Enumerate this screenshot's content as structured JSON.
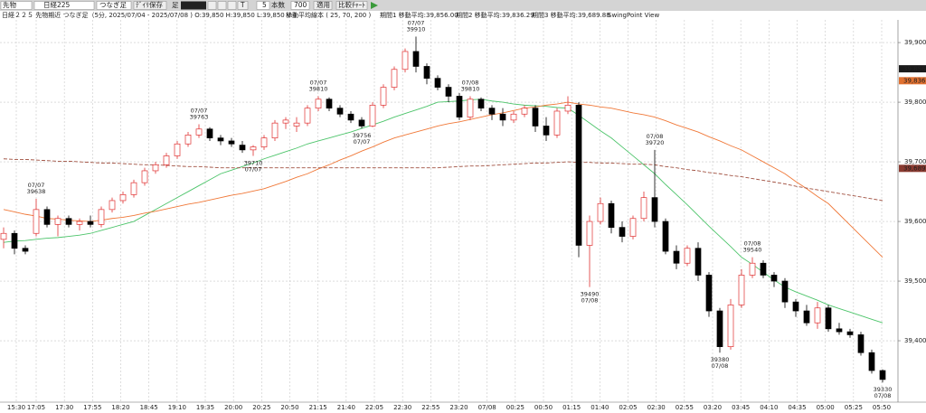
{
  "toolbar": {
    "market": "先物",
    "symbol": "日経225",
    "mode": "つなぎ足",
    "save": "ﾃﾞｲﾘ保存",
    "bar": "足",
    "t": "T",
    "interval": "5",
    "count_label": "本数",
    "count": "700",
    "apply": "適用",
    "compare": "比較ﾁｬｰﾄ"
  },
  "header": {
    "info": "日経２２５ 先物期近 つなぎ足（5分, 2025/07/04 - 2025/07/08 )  O:39,850 H:39,850 L:39,850 V:4",
    "ma_setting": "移動平均線本 ( 25, 70, 200 )",
    "ma_values": [
      "期間1 移動平均:39,856.00",
      "期間2 移動平均:39,836.29",
      "期間3 移動平均:39,689.88"
    ],
    "view": "SwingPoint View"
  },
  "chart_data": {
    "type": "candlestick",
    "up_color": "#e03030",
    "down_color": "#000000",
    "grid": true,
    "ylim": [
      39297,
      39938
    ],
    "yticks": [
      {
        "value": 39400,
        "label": "39,400"
      },
      {
        "value": 39500,
        "label": "39,500"
      },
      {
        "value": 39600,
        "label": "39,600"
      },
      {
        "value": 39700,
        "label": "39,700"
      },
      {
        "value": 39800,
        "label": "39,800"
      },
      {
        "value": 39900,
        "label": "39,900"
      }
    ],
    "time_labels": [
      "15:30",
      "17:05",
      "17:30",
      "17:55",
      "18:20",
      "18:45",
      "19:10",
      "19:35",
      "20:00",
      "20:25",
      "20:50",
      "21:15",
      "21:40",
      "22:05",
      "22:30",
      "22:55",
      "23:20",
      "07/08",
      "00:25",
      "00:50",
      "01:15",
      "01:40",
      "02:05",
      "02:30",
      "02:55",
      "03:20",
      "03:45",
      "04:10",
      "04:35",
      "05:00",
      "05:25",
      "05:50"
    ],
    "candles": [
      [
        39570,
        39590,
        39555,
        39580
      ],
      [
        39580,
        39585,
        39545,
        39555
      ],
      [
        39555,
        39560,
        39545,
        39550
      ],
      [
        39580,
        39638,
        39575,
        39620
      ],
      [
        39620,
        39625,
        39590,
        39595
      ],
      [
        39595,
        39610,
        39575,
        39605
      ],
      [
        39605,
        39610,
        39590,
        39595
      ],
      [
        39595,
        39605,
        39585,
        39600
      ],
      [
        39600,
        39610,
        39590,
        39595
      ],
      [
        39595,
        39625,
        39590,
        39620
      ],
      [
        39620,
        39640,
        39615,
        39635
      ],
      [
        39635,
        39650,
        39630,
        39645
      ],
      [
        39645,
        39670,
        39640,
        39665
      ],
      [
        39665,
        39690,
        39660,
        39685
      ],
      [
        39685,
        39700,
        39680,
        39695
      ],
      [
        39695,
        39715,
        39690,
        39710
      ],
      [
        39710,
        39735,
        39705,
        39730
      ],
      [
        39730,
        39750,
        39725,
        39745
      ],
      [
        39745,
        39763,
        39740,
        39755
      ],
      [
        39755,
        39758,
        39735,
        39740
      ],
      [
        39740,
        39745,
        39728,
        39735
      ],
      [
        39735,
        39740,
        39725,
        39730
      ],
      [
        39728,
        39735,
        39715,
        39720
      ],
      [
        39720,
        39728,
        39710,
        39725
      ],
      [
        39725,
        39745,
        39720,
        39740
      ],
      [
        39740,
        39770,
        39735,
        39765
      ],
      [
        39765,
        39775,
        39755,
        39770
      ],
      [
        39760,
        39775,
        39750,
        39765
      ],
      [
        39765,
        39795,
        39760,
        39790
      ],
      [
        39790,
        39810,
        39785,
        39805
      ],
      [
        39805,
        39808,
        39785,
        39790
      ],
      [
        39790,
        39795,
        39775,
        39780
      ],
      [
        39780,
        39785,
        39765,
        39770
      ],
      [
        39770,
        39775,
        39756,
        39760
      ],
      [
        39760,
        39800,
        39758,
        39795
      ],
      [
        39795,
        39830,
        39790,
        39825
      ],
      [
        39825,
        39860,
        39820,
        39855
      ],
      [
        39855,
        39890,
        39850,
        39885
      ],
      [
        39885,
        39910,
        39850,
        39860
      ],
      [
        39860,
        39865,
        39830,
        39840
      ],
      [
        39840,
        39845,
        39820,
        39825
      ],
      [
        39825,
        39830,
        39800,
        39810
      ],
      [
        39810,
        39815,
        39770,
        39775
      ],
      [
        39775,
        39810,
        39770,
        39805
      ],
      [
        39805,
        39808,
        39785,
        39790
      ],
      [
        39790,
        39795,
        39770,
        39780
      ],
      [
        39780,
        39790,
        39760,
        39770
      ],
      [
        39770,
        39785,
        39765,
        39780
      ],
      [
        39780,
        39795,
        39775,
        39790
      ],
      [
        39790,
        39795,
        39750,
        39760
      ],
      [
        39760,
        39775,
        39735,
        39745
      ],
      [
        39745,
        39790,
        39740,
        39785
      ],
      [
        39785,
        39810,
        39780,
        39795
      ],
      [
        39795,
        39800,
        39540,
        39560
      ],
      [
        39560,
        39610,
        39490,
        39600
      ],
      [
        39600,
        39640,
        39595,
        39630
      ],
      [
        39630,
        39635,
        39580,
        39590
      ],
      [
        39590,
        39600,
        39565,
        39575
      ],
      [
        39575,
        39610,
        39570,
        39605
      ],
      [
        39605,
        39650,
        39600,
        39640
      ],
      [
        39640,
        39720,
        39590,
        39600
      ],
      [
        39600,
        39605,
        39545,
        39550
      ],
      [
        39550,
        39560,
        39520,
        39530
      ],
      [
        39530,
        39560,
        39525,
        39555
      ],
      [
        39555,
        39565,
        39500,
        39510
      ],
      [
        39510,
        39515,
        39440,
        39450
      ],
      [
        39450,
        39455,
        39380,
        39390
      ],
      [
        39390,
        39470,
        39385,
        39460
      ],
      [
        39460,
        39520,
        39455,
        39510
      ],
      [
        39510,
        39540,
        39505,
        39530
      ],
      [
        39530,
        39535,
        39505,
        39510
      ],
      [
        39510,
        39515,
        39490,
        39500
      ],
      [
        39500,
        39505,
        39455,
        39465
      ],
      [
        39465,
        39470,
        39440,
        39450
      ],
      [
        39450,
        39460,
        39425,
        39430
      ],
      [
        39430,
        39465,
        39420,
        39455
      ],
      [
        39455,
        39460,
        39415,
        39420
      ],
      [
        39420,
        39430,
        39410,
        39415
      ],
      [
        39415,
        39420,
        39405,
        39410
      ],
      [
        39410,
        39415,
        39375,
        39380
      ],
      [
        39380,
        39385,
        39345,
        39350
      ],
      [
        39350,
        39352,
        39330,
        39335
      ]
    ],
    "moving_averages": [
      {
        "color": "#4cc46a",
        "dashed": false,
        "values": [
          39565,
          39567,
          39568,
          39570,
          39572,
          39573,
          39575,
          39577,
          39580,
          39585,
          39590,
          39595,
          39600,
          39610,
          39620,
          39630,
          39640,
          39650,
          39660,
          39670,
          39680,
          39686,
          39692,
          39698,
          39705,
          39711,
          39717,
          39723,
          39730,
          39735,
          39740,
          39745,
          39750,
          39756,
          39762,
          39768,
          39775,
          39781,
          39787,
          39793,
          39800,
          39801,
          39802,
          39804,
          39805,
          39802,
          39800,
          39797,
          39795,
          39794,
          39793,
          39791,
          39790,
          39778,
          39765,
          39752,
          39740,
          39725,
          39710,
          39695,
          39680,
          39662,
          39645,
          39628,
          39610,
          39592,
          39575,
          39558,
          39540,
          39528,
          39515,
          39502,
          39490,
          39482,
          39475,
          39468,
          39460,
          39454,
          39448,
          39442,
          39436,
          39430
        ]
      },
      {
        "color": "#f07838",
        "dashed": false,
        "values": [
          39620,
          39616,
          39612,
          39609,
          39605,
          39604,
          39602,
          39601,
          39600,
          39602,
          39605,
          39607,
          39610,
          39614,
          39617,
          39621,
          39625,
          39629,
          39632,
          39636,
          39640,
          39644,
          39647,
          39651,
          39655,
          39661,
          39667,
          39674,
          39680,
          39688,
          39695,
          39703,
          39710,
          39718,
          39725,
          39733,
          39740,
          39745,
          39750,
          39755,
          39760,
          39764,
          39767,
          39771,
          39775,
          39779,
          39782,
          39786,
          39790,
          39792,
          39795,
          39797,
          39800,
          39797,
          39795,
          39792,
          39790,
          39786,
          39782,
          39779,
          39775,
          39769,
          39762,
          39756,
          39750,
          39742,
          39735,
          39727,
          39720,
          39710,
          39700,
          39690,
          39680,
          39667,
          39655,
          39642,
          39630,
          39612,
          39594,
          39576,
          39558,
          39540
        ]
      },
      {
        "color": "#a05040",
        "dashed": true,
        "values": [
          39705,
          39704,
          39704,
          39703,
          39702,
          39701,
          39701,
          39700,
          39699,
          39698,
          39698,
          39697,
          39696,
          39695,
          39695,
          39694,
          39693,
          39692,
          39692,
          39691,
          39690,
          39690,
          39690,
          39690,
          39690,
          39690,
          39690,
          39690,
          39690,
          39690,
          39690,
          39690,
          39690,
          39690,
          39690,
          39690,
          39690,
          39690,
          39690,
          39690,
          39690,
          39691,
          39692,
          39693,
          39693,
          39694,
          39695,
          39696,
          39697,
          39698,
          39698,
          39699,
          39700,
          39699,
          39699,
          39698,
          39698,
          39697,
          39696,
          39696,
          39695,
          39692,
          39690,
          39687,
          39685,
          39682,
          39680,
          39677,
          39675,
          39672,
          39669,
          39666,
          39663,
          39659,
          39656,
          39653,
          39650,
          39647,
          39644,
          39641,
          39638,
          39635
        ]
      }
    ],
    "markers": [
      {
        "value": 39856,
        "label": "39,856",
        "color": "#1a1a1a",
        "text_color": "#8cff8c"
      },
      {
        "value": 39836,
        "label": "39,836",
        "color": "#e07030",
        "text_color": "#ffffff"
      },
      {
        "value": 39689,
        "label": "39,689",
        "color": "#8a3a30",
        "text_color": "#ffffff"
      }
    ],
    "annotation_color": "#e03030",
    "annotations": [
      {
        "date": "07/07",
        "price": 39638,
        "kind": "high"
      },
      {
        "date": "07/07",
        "price": 39763,
        "kind": "high"
      },
      {
        "date": "07/07",
        "price": 39710,
        "kind": "low"
      },
      {
        "date": "07/07",
        "price": 39810,
        "kind": "high"
      },
      {
        "date": "07/07",
        "price": 39756,
        "kind": "low"
      },
      {
        "date": "07/07",
        "price": 39910,
        "kind": "high"
      },
      {
        "date": "07/08",
        "price": 39810,
        "kind": "high"
      },
      {
        "date": "07/08",
        "price": 39490,
        "kind": "low"
      },
      {
        "date": "07/08",
        "price": 39720,
        "kind": "high"
      },
      {
        "date": "07/08",
        "price": 39380,
        "kind": "low"
      },
      {
        "date": "07/08",
        "price": 39540,
        "kind": "high"
      },
      {
        "date": "07/08",
        "price": 39330,
        "kind": "low"
      }
    ]
  }
}
